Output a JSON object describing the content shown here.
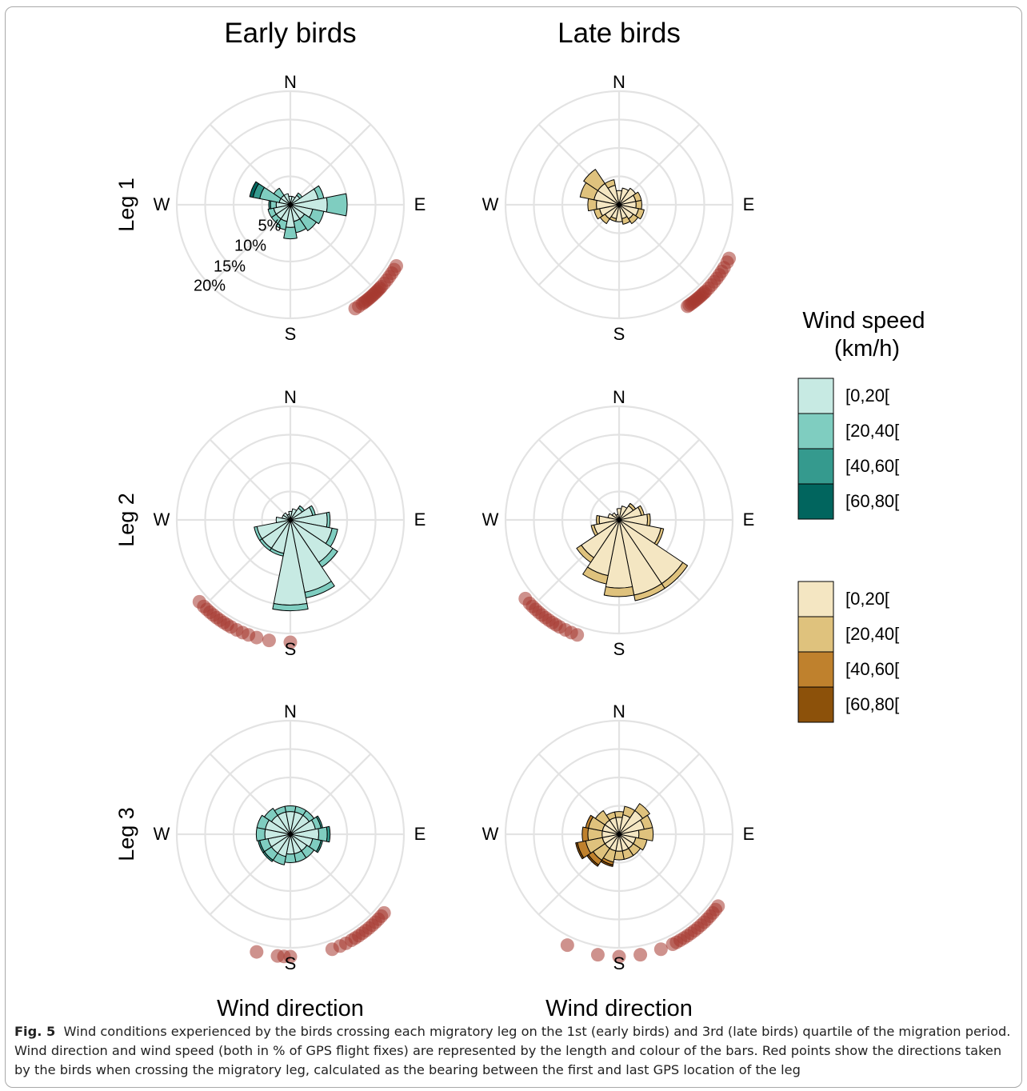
{
  "figure": {
    "col_titles": [
      "Early birds",
      "Late birds"
    ],
    "row_labels": [
      "Leg 1",
      "Leg 2",
      "Leg 3"
    ],
    "cardinals": {
      "n": "N",
      "e": "E",
      "s": "S",
      "w": "W"
    },
    "ring_labels": [
      "5%",
      "10%",
      "15%",
      "20%"
    ],
    "x_titles": [
      "Wind direction",
      "Wind direction"
    ],
    "legend": {
      "title_line1": "Wind speed",
      "title_line2": "(km/h)",
      "bins": [
        "[0,20[",
        "[20,40[",
        "[40,60[",
        "[60,80["
      ],
      "early_colors": [
        "#c7eae3",
        "#7fcdc0",
        "#359a8e",
        "#01655e"
      ],
      "late_colors": [
        "#f4e6c2",
        "#dfc27d",
        "#bf812d",
        "#8c510a"
      ]
    },
    "point_color": "#a5382f",
    "grid_color": "#e3e3e3"
  },
  "caption": {
    "label": "Fig. 5",
    "text": "Wind conditions experienced by the birds crossing each migratory leg on the 1st (early birds) and 3rd (late birds) quartile of the migration period. Wind direction and wind speed (both in % of GPS flight fixes) are represented by the length and colour of the bars. Red points show the directions taken by the birds when crossing the migratory leg, calculated as the bearing between the first and last GPS location of the leg"
  },
  "chart_data": [
    {
      "type": "wind_rose",
      "panel": "Leg 1 - Early birds",
      "r_max_percent": 20,
      "sector_width_deg": 22.5,
      "directions_deg": [
        0,
        22.5,
        45,
        67.5,
        90,
        112.5,
        135,
        157.5,
        180,
        202.5,
        225,
        247.5,
        270,
        292.5,
        315,
        337.5
      ],
      "series": [
        {
          "name": "[0,20[",
          "values": [
            1.5,
            1.5,
            2,
            5,
            6.5,
            4,
            3,
            3,
            4,
            3,
            3,
            3,
            2.5,
            2,
            2,
            2
          ]
        },
        {
          "name": "[20,40[",
          "values": [
            0,
            0,
            0.5,
            1,
            3.5,
            2,
            2.5,
            2,
            2,
            1.5,
            1,
            1,
            1,
            3.5,
            1.5,
            0
          ]
        },
        {
          "name": "[40,60[",
          "values": [
            0,
            0,
            0,
            0,
            0,
            0,
            0,
            0,
            0,
            0,
            0,
            0,
            0.3,
            1.2,
            0,
            0
          ]
        },
        {
          "name": "[60,80[",
          "values": [
            0,
            0,
            0,
            0,
            0,
            0,
            0,
            0,
            0,
            0,
            0,
            0,
            0,
            0.6,
            0,
            0
          ]
        }
      ],
      "bird_bearings_deg": [
        120,
        122,
        124,
        126,
        128,
        130,
        132,
        133,
        134,
        135,
        136,
        137,
        138,
        139,
        140,
        141,
        142,
        143,
        144,
        146,
        148
      ]
    },
    {
      "type": "wind_rose",
      "panel": "Leg 1 - Late birds",
      "r_max_percent": 20,
      "sector_width_deg": 22.5,
      "directions_deg": [
        0,
        22.5,
        45,
        67.5,
        90,
        112.5,
        135,
        157.5,
        180,
        202.5,
        225,
        247.5,
        270,
        292.5,
        315,
        337.5
      ],
      "series": [
        {
          "name": "[0,20[",
          "values": [
            2.5,
            3,
            3.5,
            3,
            3,
            3.5,
            3,
            2.5,
            3,
            2.5,
            3,
            3.5,
            4,
            4.5,
            4.5,
            3.5
          ]
        },
        {
          "name": "[20,40[",
          "values": [
            0,
            0,
            0,
            1,
            1,
            1,
            1,
            1,
            0,
            0.5,
            1,
            1,
            1.5,
            2.5,
            3,
            1
          ]
        },
        {
          "name": "[40,60[",
          "values": [
            0,
            0,
            0,
            0,
            0,
            0,
            0,
            0,
            0,
            0,
            0,
            0,
            0,
            0,
            0,
            0
          ]
        },
        {
          "name": "[60,80[",
          "values": [
            0,
            0,
            0,
            0,
            0,
            0,
            0,
            0,
            0,
            0,
            0,
            0,
            0,
            0,
            0,
            0
          ]
        }
      ],
      "bird_bearings_deg": [
        116,
        118,
        121,
        123,
        125,
        127,
        129,
        131,
        133,
        135,
        136,
        137,
        138,
        139,
        140,
        141,
        142,
        143,
        144,
        145,
        146
      ]
    },
    {
      "type": "wind_rose",
      "panel": "Leg 2 - Early birds",
      "r_max_percent": 20,
      "sector_width_deg": 22.5,
      "directions_deg": [
        0,
        22.5,
        45,
        67.5,
        90,
        112.5,
        135,
        157.5,
        180,
        202.5,
        225,
        247.5,
        270,
        292.5,
        315,
        337.5
      ],
      "series": [
        {
          "name": "[0,20[",
          "values": [
            1.5,
            2,
            2.5,
            4,
            6.5,
            7.5,
            9,
            13,
            15,
            6,
            6,
            6,
            2.5,
            1.5,
            1.5,
            1
          ]
        },
        {
          "name": "[20,40[",
          "values": [
            0,
            0,
            0.5,
            0.5,
            0.5,
            1,
            1,
            1,
            1,
            0.5,
            0.5,
            0.5,
            0,
            0,
            0,
            0
          ]
        },
        {
          "name": "[40,60[",
          "values": [
            0,
            0,
            0,
            0,
            0,
            0,
            0,
            0,
            0,
            0,
            0,
            0,
            0,
            0,
            0,
            0
          ]
        },
        {
          "name": "[60,80[",
          "values": [
            0,
            0,
            0,
            0,
            0,
            0,
            0,
            0,
            0,
            0,
            0,
            0,
            0,
            0,
            0,
            0
          ]
        }
      ],
      "bird_bearings_deg": [
        180,
        190,
        196,
        200,
        203,
        206,
        209,
        211,
        213,
        215,
        217,
        219,
        221,
        223,
        225,
        228
      ]
    },
    {
      "type": "wind_rose",
      "panel": "Leg 2 - Late birds",
      "r_max_percent": 20,
      "sector_width_deg": 22.5,
      "directions_deg": [
        0,
        22.5,
        45,
        67.5,
        90,
        112.5,
        135,
        157.5,
        180,
        202.5,
        225,
        247.5,
        270,
        292.5,
        315,
        337.5
      ],
      "series": [
        {
          "name": "[0,20[",
          "values": [
            2,
            2.5,
            3,
            4,
            5,
            7.5,
            13.5,
            13.5,
            12,
            10,
            8,
            4.5,
            3.5,
            2,
            1.5,
            1
          ]
        },
        {
          "name": "[20,40[",
          "values": [
            0,
            0,
            0.5,
            0.5,
            0.5,
            0.5,
            1,
            1,
            1.5,
            1.5,
            1,
            0.5,
            0.5,
            0,
            0,
            0
          ]
        },
        {
          "name": "[40,60[",
          "values": [
            0,
            0,
            0,
            0,
            0,
            0,
            0,
            0,
            0,
            0,
            0,
            0,
            0,
            0,
            0,
            0
          ]
        },
        {
          "name": "[60,80[",
          "values": [
            0,
            0,
            0,
            0,
            0,
            0,
            0,
            0,
            0,
            0,
            0,
            0,
            0,
            0,
            0,
            0
          ]
        }
      ],
      "bird_bearings_deg": [
        200,
        203,
        206,
        209,
        211,
        213,
        215,
        217,
        219,
        221,
        223,
        225,
        227,
        230
      ]
    },
    {
      "type": "wind_rose",
      "panel": "Leg 3 - Early birds",
      "r_max_percent": 20,
      "sector_width_deg": 22.5,
      "directions_deg": [
        0,
        22.5,
        45,
        67.5,
        90,
        112.5,
        135,
        157.5,
        180,
        202.5,
        225,
        247.5,
        270,
        292.5,
        315,
        337.5
      ],
      "series": [
        {
          "name": "[0,20[",
          "values": [
            4,
            4,
            4,
            4.5,
            5,
            4,
            3.5,
            3.5,
            3.5,
            4,
            4,
            4,
            4.5,
            4.5,
            4,
            4
          ]
        },
        {
          "name": "[20,40[",
          "values": [
            1,
            1,
            1,
            1,
            1.5,
            1.5,
            1.5,
            1.5,
            1.5,
            1.5,
            1.5,
            1.5,
            1.5,
            1.5,
            1.5,
            1
          ]
        },
        {
          "name": "[40,60[",
          "values": [
            0,
            0,
            0,
            0.3,
            0.5,
            0.3,
            0,
            0,
            0,
            0,
            0.3,
            0.3,
            0,
            0,
            0,
            0
          ]
        },
        {
          "name": "[60,80[",
          "values": [
            0,
            0,
            0,
            0,
            0,
            0,
            0,
            0,
            0,
            0,
            0,
            0,
            0,
            0,
            0,
            0
          ]
        }
      ],
      "bird_bearings_deg": [
        130,
        132,
        134,
        136,
        138,
        140,
        142,
        144,
        146,
        148,
        150,
        153,
        156,
        160,
        180,
        183,
        186,
        196
      ]
    },
    {
      "type": "wind_rose",
      "panel": "Leg 3 - Late birds",
      "r_max_percent": 20,
      "sector_width_deg": 22.5,
      "directions_deg": [
        0,
        22.5,
        45,
        67.5,
        90,
        112.5,
        135,
        157.5,
        180,
        202.5,
        225,
        247.5,
        270,
        292.5,
        315,
        337.5
      ],
      "series": [
        {
          "name": "[0,20[",
          "values": [
            3,
            3.5,
            5,
            4.5,
            3.5,
            3,
            3,
            3,
            3,
            3,
            3,
            3,
            3,
            3,
            3,
            3
          ]
        },
        {
          "name": "[20,40[",
          "values": [
            1,
            1.5,
            1.5,
            1.5,
            2.5,
            2,
            1.5,
            1.5,
            1.5,
            2,
            2.5,
            3,
            2.5,
            2.5,
            2,
            1
          ]
        },
        {
          "name": "[40,60[",
          "values": [
            0,
            0,
            0,
            0,
            0,
            0,
            0,
            0,
            0,
            0.5,
            1,
            1.5,
            1,
            0.5,
            0,
            0
          ]
        },
        {
          "name": "[60,80[",
          "values": [
            0,
            0,
            0,
            0,
            0,
            0,
            0,
            0,
            0,
            0.3,
            0.3,
            0.3,
            0,
            0,
            0,
            0
          ]
        }
      ],
      "bird_bearings_deg": [
        126,
        128,
        130,
        132,
        134,
        136,
        138,
        140,
        142,
        144,
        146,
        148,
        150,
        152,
        154,
        160,
        170,
        180,
        190,
        205
      ]
    }
  ]
}
